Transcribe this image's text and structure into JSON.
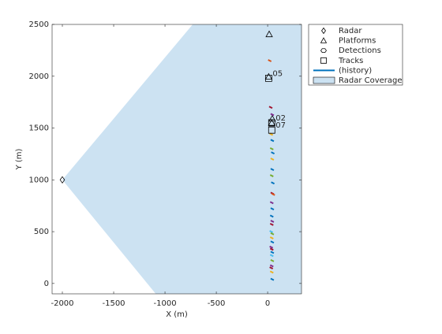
{
  "chart_data": {
    "type": "scatter",
    "xlabel": "X (m)",
    "ylabel": "Y (m)",
    "xlim": [
      -2100,
      330
    ],
    "ylim": [
      -100,
      2500
    ],
    "xticks": [
      -2000,
      -1500,
      -1000,
      -500,
      0
    ],
    "yticks": [
      0,
      500,
      1000,
      1500,
      2000,
      2500
    ],
    "series": [
      {
        "name": "Radar",
        "marker": "diamond",
        "color": "#000000",
        "x": [
          -2000
        ],
        "y": [
          1000
        ]
      },
      {
        "name": "Platforms",
        "marker": "triangle",
        "color": "#000000",
        "x": [
          15,
          10,
          45,
          40
        ],
        "y": [
          2405,
          1995,
          1590,
          1550
        ]
      },
      {
        "name": "Detections",
        "marker": "hexagon",
        "color": "#000000",
        "x": [
          20,
          30,
          45,
          35,
          45,
          40,
          50,
          45,
          45,
          40,
          50,
          45,
          55,
          40,
          45,
          40,
          45,
          40,
          35,
          45,
          40,
          45,
          35,
          40,
          45,
          40,
          45,
          40,
          35,
          40,
          45
        ],
        "y": [
          2150,
          1700,
          1630,
          1440,
          1380,
          1300,
          1260,
          1200,
          1100,
          1040,
          970,
          870,
          860,
          780,
          720,
          650,
          600,
          570,
          500,
          480,
          440,
          400,
          350,
          330,
          300,
          270,
          220,
          170,
          150,
          110,
          40
        ],
        "colors": [
          "#d95319",
          "#a2142f",
          "#7e2f8e",
          "#edb120",
          "#0072bd",
          "#77ac30",
          "#0072bd",
          "#edb120",
          "#0072bd",
          "#77ac30",
          "#0072bd",
          "#a2142f",
          "#d95319",
          "#7e2f8e",
          "#0072bd",
          "#0072bd",
          "#7e2f8e",
          "#a2142f",
          "#4dbeee",
          "#77ac30",
          "#edb120",
          "#0072bd",
          "#7e2f8e",
          "#a2142f",
          "#0072bd",
          "#4dbeee",
          "#77ac30",
          "#7e2f8e",
          "#a2142f",
          "#edb120",
          "#0072bd"
        ]
      },
      {
        "name": "Tracks",
        "marker": "square",
        "color": "#000000",
        "x": [
          10,
          40,
          40
        ],
        "y": [
          1980,
          1550,
          1480
        ],
        "labels": [
          "05",
          "02",
          "07"
        ]
      },
      {
        "name": "(history)",
        "marker": "line",
        "color": "#0072bd"
      },
      {
        "name": "Radar Coverage",
        "marker": "patch",
        "color": "#cce2f2",
        "x": [
          -2000,
          -730,
          330,
          330,
          -1090
        ],
        "y": [
          1000,
          2500,
          2500,
          -100,
          -100
        ]
      }
    ]
  }
}
